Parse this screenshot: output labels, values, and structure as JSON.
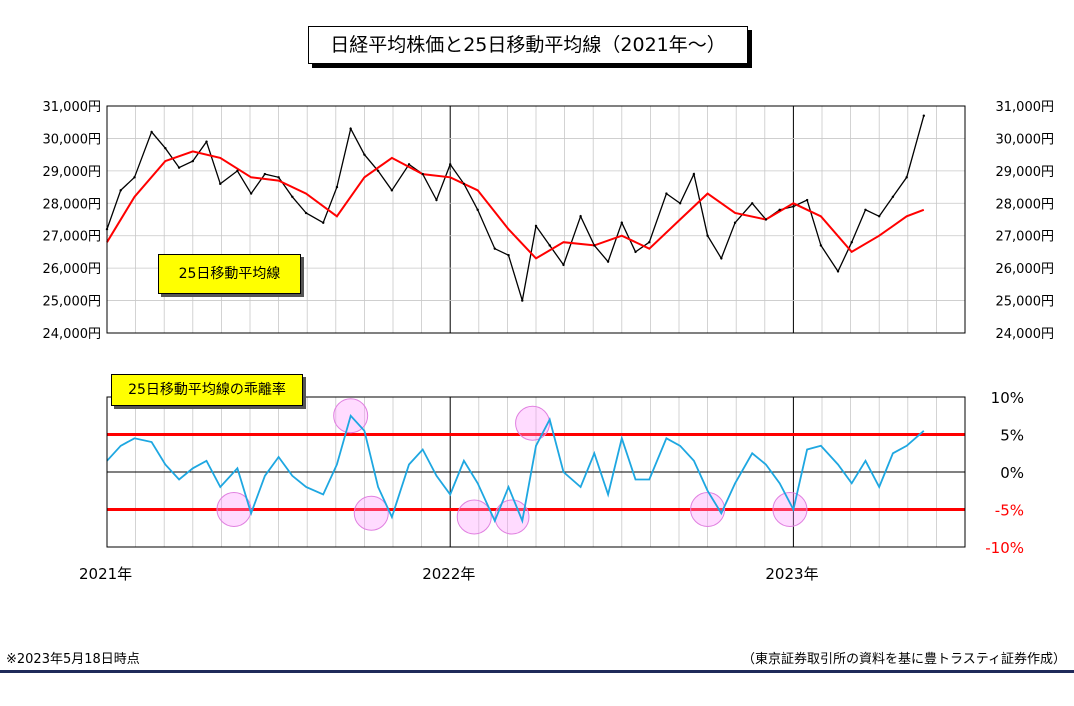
{
  "header": {
    "title": "日経平均株価と25日移動平均線（2021年～）"
  },
  "top_panel": {
    "label": "25日移動平均線"
  },
  "bottom_panel": {
    "label": "25日移動平均線の乖離率"
  },
  "footer": {
    "note_left": "※2023年5月18日時点",
    "note_right": "（東京証券取引所の資料を基に豊トラスティ証券作成）"
  },
  "colors": {
    "price": "#000000",
    "ma25": "#ff0000",
    "deviation": "#1ea7e1",
    "band": "#ff0000",
    "highlight": "#ff99ff"
  },
  "chart_data": [
    {
      "type": "line",
      "title": "日経平均株価と25日移動平均線（2021年～）",
      "ylim": [
        24000,
        31000
      ],
      "y_ticks": [
        "24,000円",
        "25,000円",
        "26,000円",
        "27,000円",
        "28,000円",
        "29,000円",
        "30,000円",
        "31,000円"
      ],
      "x_labels": [
        "2021年",
        "2022年",
        "2023年"
      ],
      "x_label_positions": [
        2021.0,
        2022.0,
        2023.0
      ],
      "grid": true,
      "series": [
        {
          "name": "25日移動平均線",
          "x": [
            2021.0,
            2021.08,
            2021.17,
            2021.25,
            2021.33,
            2021.42,
            2021.5,
            2021.58,
            2021.67,
            2021.75,
            2021.83,
            2021.92,
            2022.0,
            2022.08,
            2022.17,
            2022.25,
            2022.33,
            2022.42,
            2022.5,
            2022.58,
            2022.67,
            2022.75,
            2022.83,
            2022.92,
            2023.0,
            2023.08,
            2023.17,
            2023.25,
            2023.33,
            2023.38
          ],
          "values": [
            26800,
            28200,
            29300,
            29600,
            29400,
            28800,
            28700,
            28300,
            27600,
            28800,
            29400,
            28900,
            28800,
            28400,
            27200,
            26300,
            26800,
            26700,
            27000,
            26600,
            27500,
            28300,
            27700,
            27500,
            28000,
            27600,
            26500,
            27000,
            27600,
            27800
          ]
        },
        {
          "x": [
            2021.0,
            2021.04,
            2021.08,
            2021.13,
            2021.17,
            2021.21,
            2021.25,
            2021.29,
            2021.33,
            2021.38,
            2021.42,
            2021.46,
            2021.5,
            2021.54,
            2021.58,
            2021.63,
            2021.67,
            2021.71,
            2021.75,
            2021.79,
            2021.83,
            2021.88,
            2021.92,
            2021.96,
            2022.0,
            2022.04,
            2022.08,
            2022.13,
            2022.17,
            2022.21,
            2022.25,
            2022.29,
            2022.33,
            2022.38,
            2022.42,
            2022.46,
            2022.5,
            2022.54,
            2022.58,
            2022.63,
            2022.67,
            2022.71,
            2022.75,
            2022.79,
            2022.83,
            2022.88,
            2022.92,
            2022.96,
            2023.0,
            2023.04,
            2023.08,
            2023.13,
            2023.17,
            2023.21,
            2023.25,
            2023.29,
            2023.33,
            2023.38
          ],
          "values": [
            27200,
            28400,
            28800,
            30200,
            29700,
            29100,
            29300,
            29900,
            28600,
            29000,
            28300,
            28900,
            28800,
            28200,
            27700,
            27400,
            28500,
            30300,
            29500,
            29000,
            28400,
            29200,
            28900,
            28100,
            29200,
            28600,
            27800,
            26600,
            26400,
            25000,
            27300,
            26700,
            26100,
            27600,
            26700,
            26200,
            27400,
            26500,
            26800,
            28300,
            28000,
            28900,
            27000,
            26300,
            27400,
            28000,
            27500,
            27800,
            27900,
            28100,
            26700,
            25900,
            26800,
            27800,
            27600,
            28200,
            28800,
            30700
          ]
        }
      ]
    },
    {
      "type": "line",
      "title": "25日移動平均線の乖離率",
      "ylim": [
        -10,
        10
      ],
      "y_ticks": [
        "-10%",
        "-5%",
        "0%",
        "5%",
        "10%"
      ],
      "reference_lines": [
        5,
        -5
      ],
      "grid": true,
      "series": [
        {
          "x": [
            2021.0,
            2021.04,
            2021.08,
            2021.13,
            2021.17,
            2021.21,
            2021.25,
            2021.29,
            2021.33,
            2021.38,
            2021.42,
            2021.46,
            2021.5,
            2021.54,
            2021.58,
            2021.63,
            2021.67,
            2021.71,
            2021.75,
            2021.79,
            2021.83,
            2021.88,
            2021.92,
            2021.96,
            2022.0,
            2022.04,
            2022.08,
            2022.13,
            2022.17,
            2022.21,
            2022.25,
            2022.29,
            2022.33,
            2022.38,
            2022.42,
            2022.46,
            2022.5,
            2022.54,
            2022.58,
            2022.63,
            2022.67,
            2022.71,
            2022.75,
            2022.79,
            2022.83,
            2022.88,
            2022.92,
            2022.96,
            2023.0,
            2023.04,
            2023.08,
            2023.13,
            2023.17,
            2023.21,
            2023.25,
            2023.29,
            2023.33,
            2023.38
          ],
          "values": [
            1.5,
            3.5,
            4.5,
            4.0,
            1.0,
            -1.0,
            0.5,
            1.5,
            -2.0,
            0.5,
            -5.5,
            -0.5,
            2.0,
            -0.5,
            -2.0,
            -3.0,
            1.0,
            7.5,
            5.5,
            -2.0,
            -6.0,
            1.0,
            3.0,
            -0.5,
            -3.0,
            1.5,
            -1.5,
            -6.5,
            -2.0,
            -6.5,
            3.5,
            7.0,
            0.0,
            -2.0,
            2.5,
            -3.0,
            4.5,
            -1.0,
            -1.0,
            4.5,
            3.5,
            1.5,
            -2.5,
            -5.5,
            -1.5,
            2.5,
            1.0,
            -1.5,
            -5.0,
            3.0,
            3.5,
            1.0,
            -1.5,
            1.5,
            -2.0,
            2.5,
            3.5,
            5.5
          ]
        }
      ],
      "highlighted_points": [
        {
          "x": 2021.37,
          "y": -5
        },
        {
          "x": 2021.71,
          "y": 7.5
        },
        {
          "x": 2021.77,
          "y": -5.5
        },
        {
          "x": 2022.07,
          "y": -6
        },
        {
          "x": 2022.18,
          "y": -6
        },
        {
          "x": 2022.24,
          "y": 6.5
        },
        {
          "x": 2022.75,
          "y": -5
        },
        {
          "x": 2022.99,
          "y": -5
        }
      ]
    }
  ]
}
